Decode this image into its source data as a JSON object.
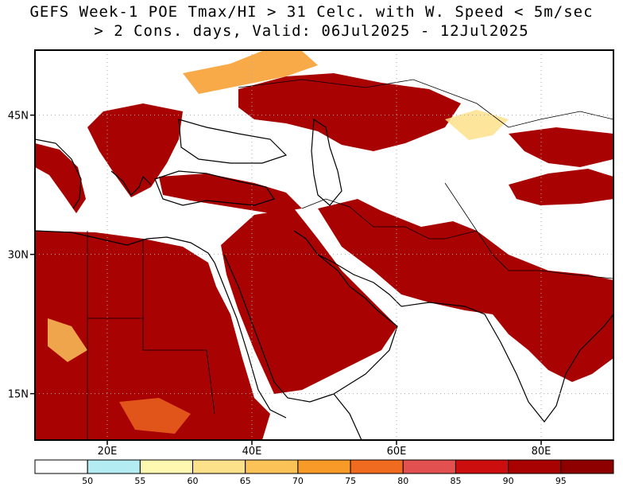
{
  "title_line1": "GEFS Week-1 POE Tmax/HI > 31 Celc. with W. Speed < 5m/sec",
  "title_line2": "> 2 Cons. days, Valid: 06Jul2025 - 12Jul2025",
  "map": {
    "lon_range": [
      10,
      90
    ],
    "lat_range": [
      10,
      52
    ],
    "lon_ticks": [
      {
        "lon": 20,
        "label": "20E"
      },
      {
        "lon": 40,
        "label": "40E"
      },
      {
        "lon": 60,
        "label": "60E"
      },
      {
        "lon": 80,
        "label": "80E"
      }
    ],
    "lat_ticks": [
      {
        "lat": 45,
        "label": "45N"
      },
      {
        "lat": 30,
        "label": "30N"
      },
      {
        "lat": 15,
        "label": "15N"
      }
    ],
    "gridlines": "dotted"
  },
  "colorbar": {
    "thresholds": [
      "50",
      "55",
      "60",
      "65",
      "70",
      "75",
      "80",
      "85",
      "90",
      "95"
    ],
    "colors": [
      "#ffffff",
      "#b4ecf4",
      "#fff8b0",
      "#fde08a",
      "#fbc258",
      "#f79a28",
      "#f06a20",
      "#e25050",
      "#cc0e0e",
      "#a80202",
      "#8e0000"
    ]
  }
}
